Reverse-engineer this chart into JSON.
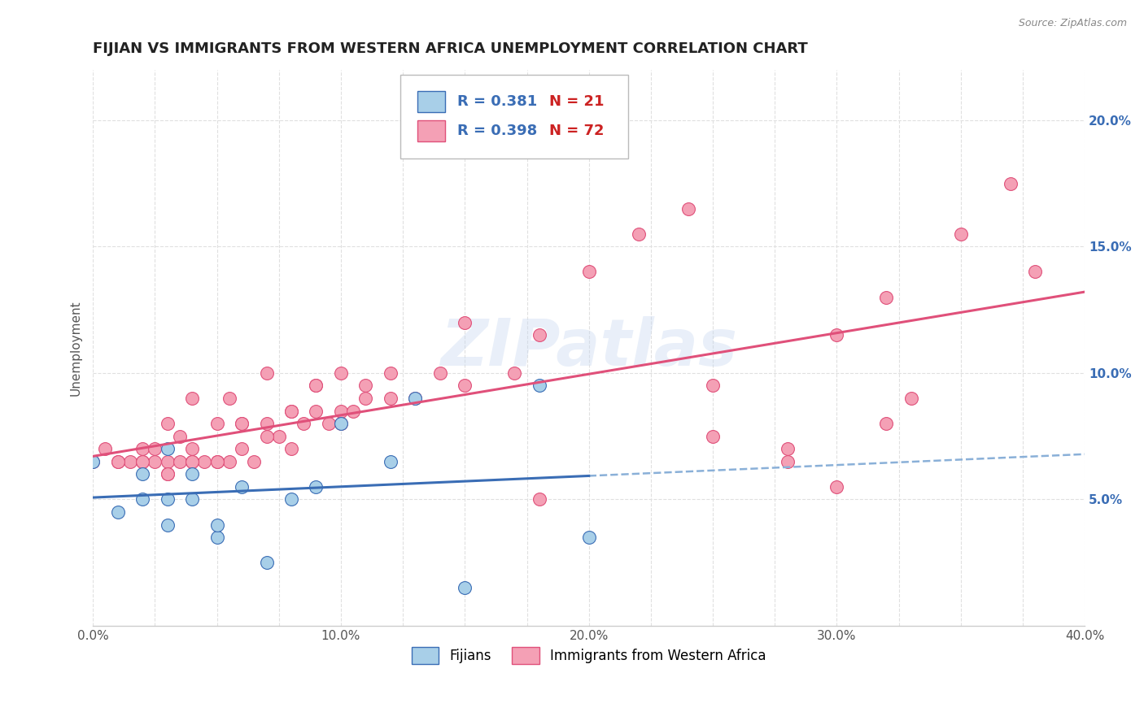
{
  "title": "FIJIAN VS IMMIGRANTS FROM WESTERN AFRICA UNEMPLOYMENT CORRELATION CHART",
  "source": "Source: ZipAtlas.com",
  "ylabel": "Unemployment",
  "fijian_R": 0.381,
  "fijian_N": 21,
  "western_africa_R": 0.398,
  "western_africa_N": 72,
  "fijian_color": "#a8cfe8",
  "western_africa_color": "#f4a0b5",
  "fijian_line_color": "#3a6db5",
  "western_africa_line_color": "#e0507a",
  "dashed_line_color": "#8ab0d8",
  "watermark": "ZIPatlas",
  "background_color": "#ffffff",
  "grid_color": "#e0e0e0",
  "fijian_scatter_x": [
    0.0,
    0.01,
    0.02,
    0.02,
    0.03,
    0.03,
    0.03,
    0.04,
    0.04,
    0.05,
    0.05,
    0.06,
    0.07,
    0.08,
    0.09,
    0.1,
    0.12,
    0.13,
    0.15,
    0.18,
    0.2
  ],
  "fijian_scatter_y": [
    0.065,
    0.045,
    0.05,
    0.06,
    0.04,
    0.05,
    0.07,
    0.05,
    0.06,
    0.035,
    0.04,
    0.055,
    0.025,
    0.05,
    0.055,
    0.08,
    0.065,
    0.09,
    0.015,
    0.095,
    0.035
  ],
  "western_africa_scatter_x": [
    0.0,
    0.005,
    0.01,
    0.015,
    0.02,
    0.02,
    0.025,
    0.025,
    0.03,
    0.03,
    0.03,
    0.035,
    0.035,
    0.04,
    0.04,
    0.04,
    0.045,
    0.05,
    0.05,
    0.055,
    0.055,
    0.06,
    0.06,
    0.065,
    0.07,
    0.07,
    0.075,
    0.08,
    0.08,
    0.085,
    0.09,
    0.09,
    0.095,
    0.1,
    0.1,
    0.105,
    0.11,
    0.11,
    0.12,
    0.13,
    0.14,
    0.15,
    0.17,
    0.28,
    0.3,
    0.32,
    0.1,
    0.08,
    0.06,
    0.05,
    0.04,
    0.03,
    0.02,
    0.01,
    0.07,
    0.09,
    0.12,
    0.15,
    0.18,
    0.2,
    0.22,
    0.24,
    0.25,
    0.28,
    0.3,
    0.32,
    0.35,
    0.37,
    0.38,
    0.33,
    0.25,
    0.18
  ],
  "western_africa_scatter_y": [
    0.065,
    0.07,
    0.065,
    0.065,
    0.065,
    0.07,
    0.065,
    0.07,
    0.06,
    0.065,
    0.08,
    0.065,
    0.075,
    0.065,
    0.07,
    0.09,
    0.065,
    0.08,
    0.065,
    0.065,
    0.09,
    0.07,
    0.08,
    0.065,
    0.08,
    0.1,
    0.075,
    0.07,
    0.085,
    0.08,
    0.085,
    0.095,
    0.08,
    0.08,
    0.085,
    0.085,
    0.09,
    0.095,
    0.09,
    0.09,
    0.1,
    0.095,
    0.1,
    0.065,
    0.055,
    0.08,
    0.1,
    0.085,
    0.08,
    0.065,
    0.065,
    0.06,
    0.065,
    0.065,
    0.075,
    0.095,
    0.1,
    0.12,
    0.115,
    0.14,
    0.155,
    0.165,
    0.095,
    0.07,
    0.115,
    0.13,
    0.155,
    0.175,
    0.14,
    0.09,
    0.075,
    0.05
  ],
  "xlim": [
    0.0,
    0.4
  ],
  "ylim": [
    0.0,
    0.22
  ],
  "yticks": [
    0.05,
    0.1,
    0.15,
    0.2
  ],
  "ytick_labels": [
    "5.0%",
    "10.0%",
    "15.0%",
    "20.0%"
  ],
  "xticks": [
    0.0,
    0.025,
    0.05,
    0.075,
    0.1,
    0.125,
    0.15,
    0.175,
    0.2,
    0.225,
    0.25,
    0.275,
    0.3,
    0.325,
    0.35,
    0.375,
    0.4
  ],
  "xtick_labels": [
    "0.0%",
    "",
    "",
    "",
    "10.0%",
    "",
    "",
    "",
    "20.0%",
    "",
    "",
    "",
    "30.0%",
    "",
    "",
    "",
    "40.0%"
  ],
  "legend_fijian_label": "Fijians",
  "legend_western_label": "Immigrants from Western Africa",
  "title_fontsize": 13,
  "axis_label_fontsize": 11,
  "tick_fontsize": 11,
  "legend_fontsize": 12
}
